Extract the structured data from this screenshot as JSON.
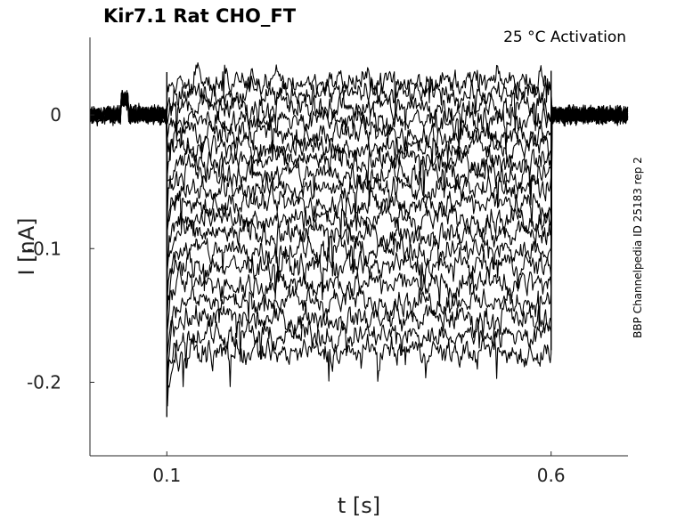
{
  "chart_data": {
    "type": "line",
    "title": "Kir7.1  Rat  CHO_FT",
    "condition": "25 °C  Activation",
    "side_note": "BBP Channelpedia ID 25183 rep 2",
    "xlabel": "t [s]",
    "ylabel": "I [nA]",
    "xlim": [
      0.0,
      0.7
    ],
    "ylim": [
      -0.255,
      0.058
    ],
    "x_ticks": [
      {
        "value": 0.1,
        "label": "0.1"
      },
      {
        "value": 0.6,
        "label": "0.6"
      }
    ],
    "y_ticks": [
      {
        "value": 0,
        "label": "0"
      },
      {
        "value": -0.1,
        "label": "-0.1"
      },
      {
        "value": -0.2,
        "label": "-0.2"
      }
    ],
    "step": {
      "start": 0.1,
      "end": 0.6
    },
    "baseline": 0.0,
    "series": [
      {
        "step_level": 0.025
      },
      {
        "step_level": 0.016
      },
      {
        "step_level": 0.006
      },
      {
        "step_level": -0.004
      },
      {
        "step_level": -0.014
      },
      {
        "step_level": -0.024
      },
      {
        "step_level": -0.034
      },
      {
        "step_level": -0.044
      },
      {
        "step_level": -0.055
      },
      {
        "step_level": -0.066
      },
      {
        "step_level": -0.077
      },
      {
        "step_level": -0.089
      },
      {
        "step_level": -0.101
      },
      {
        "step_level": -0.113
      },
      {
        "step_level": -0.126
      },
      {
        "step_level": -0.139
      },
      {
        "step_level": -0.152
      },
      {
        "step_level": -0.165
      },
      {
        "step_level": -0.178
      }
    ],
    "grid": false,
    "legend": "none",
    "line_color": "#000000"
  }
}
